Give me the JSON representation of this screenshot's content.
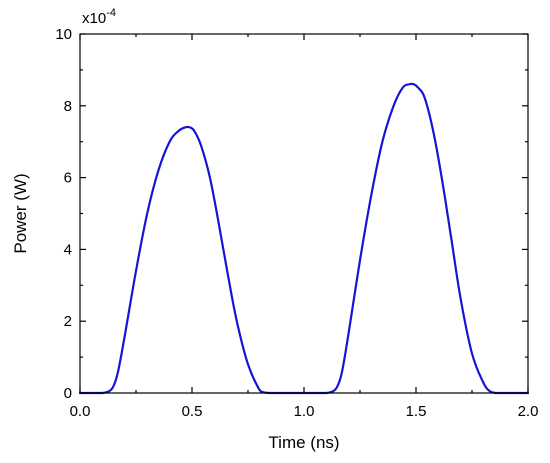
{
  "chart_data": {
    "type": "line",
    "title": "",
    "xlabel": "Time (ns)",
    "ylabel": "Power (W)",
    "y_multiplier_label": "x10",
    "y_multiplier_exponent": "-4",
    "xlim": [
      0.0,
      2.0
    ],
    "ylim": [
      0,
      10
    ],
    "x_ticks": [
      0.0,
      0.5,
      1.0,
      1.5,
      2.0
    ],
    "x_tick_labels": [
      "0.0",
      "0.5",
      "1.0",
      "1.5",
      "2.0"
    ],
    "y_ticks": [
      0,
      2,
      4,
      6,
      8,
      10
    ],
    "y_tick_labels": [
      "0",
      "2",
      "4",
      "6",
      "8",
      "10"
    ],
    "grid": false,
    "legend": "none",
    "line_color": "#1515d6",
    "series": [
      {
        "x": [
          0.0,
          0.05,
          0.1,
          0.13,
          0.15,
          0.17,
          0.2,
          0.25,
          0.3,
          0.35,
          0.4,
          0.44,
          0.47,
          0.49,
          0.51,
          0.54,
          0.58,
          0.62,
          0.66,
          0.7,
          0.75,
          0.8,
          0.82,
          0.85,
          0.9,
          0.95,
          1.0,
          1.05,
          1.1,
          1.13,
          1.15,
          1.17,
          1.2,
          1.25,
          1.3,
          1.35,
          1.4,
          1.44,
          1.47,
          1.49,
          1.51,
          1.54,
          1.58,
          1.62,
          1.66,
          1.7,
          1.75,
          1.8,
          1.83,
          1.86,
          1.9,
          1.95,
          2.0
        ],
        "y": [
          0,
          0,
          0,
          0.05,
          0.2,
          0.6,
          1.6,
          3.4,
          5.0,
          6.2,
          7.0,
          7.3,
          7.4,
          7.4,
          7.3,
          6.9,
          6.0,
          4.7,
          3.3,
          2.0,
          0.8,
          0.1,
          0.02,
          0,
          0,
          0,
          0,
          0,
          0,
          0.05,
          0.2,
          0.6,
          1.7,
          3.7,
          5.5,
          7.0,
          8.0,
          8.5,
          8.6,
          8.6,
          8.5,
          8.2,
          7.2,
          5.8,
          4.2,
          2.6,
          1.1,
          0.3,
          0.05,
          0,
          0,
          0,
          0
        ]
      }
    ]
  }
}
